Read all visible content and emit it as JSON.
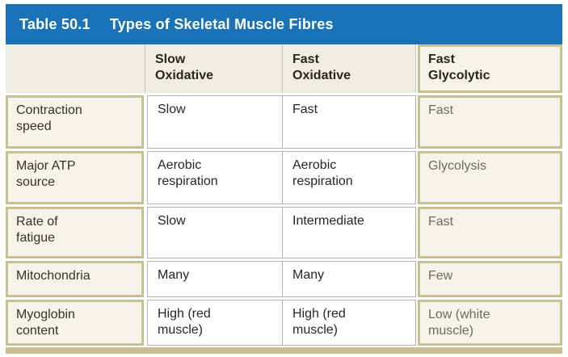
{
  "title_bar": {
    "label": "Table 50.1",
    "title": "Types of Skeletal Muscle Fibres"
  },
  "columns": {
    "slow_oxidative": "Slow\nOxidative",
    "fast_oxidative": "Fast\nOxidative",
    "fast_glycolytic": "Fast\nGlycolytic"
  },
  "rows": [
    {
      "label": "Contraction\nspeed",
      "slow_oxidative": "Slow",
      "fast_oxidative": "Fast",
      "fast_glycolytic": "Fast"
    },
    {
      "label": "Major ATP\nsource",
      "slow_oxidative": "Aerobic\nrespiration",
      "fast_oxidative": "Aerobic\nrespiration",
      "fast_glycolytic": "Glycolysis"
    },
    {
      "label": "Rate of\nfatigue",
      "slow_oxidative": "Slow",
      "fast_oxidative": "Intermediate",
      "fast_glycolytic": "Fast"
    },
    {
      "label": "Mitochondria",
      "slow_oxidative": "Many",
      "fast_oxidative": "Many",
      "fast_glycolytic": "Few"
    },
    {
      "label": "Myoglobin\ncontent",
      "slow_oxidative": "High (red\nmuscle)",
      "fast_oxidative": "High (red\nmuscle)",
      "fast_glycolytic": "Low (white\nmuscle)"
    }
  ],
  "colors": {
    "header_blue": "#1a73b9",
    "highlight_border": "#c9c08f",
    "highlight_bg": "#f6f3ea",
    "header_cell_bg": "#f0ede4",
    "grid_line": "#b3b3ae",
    "text_dark": "#262622",
    "text_muted": "#6c6b60",
    "title_text": "#ffffff"
  }
}
